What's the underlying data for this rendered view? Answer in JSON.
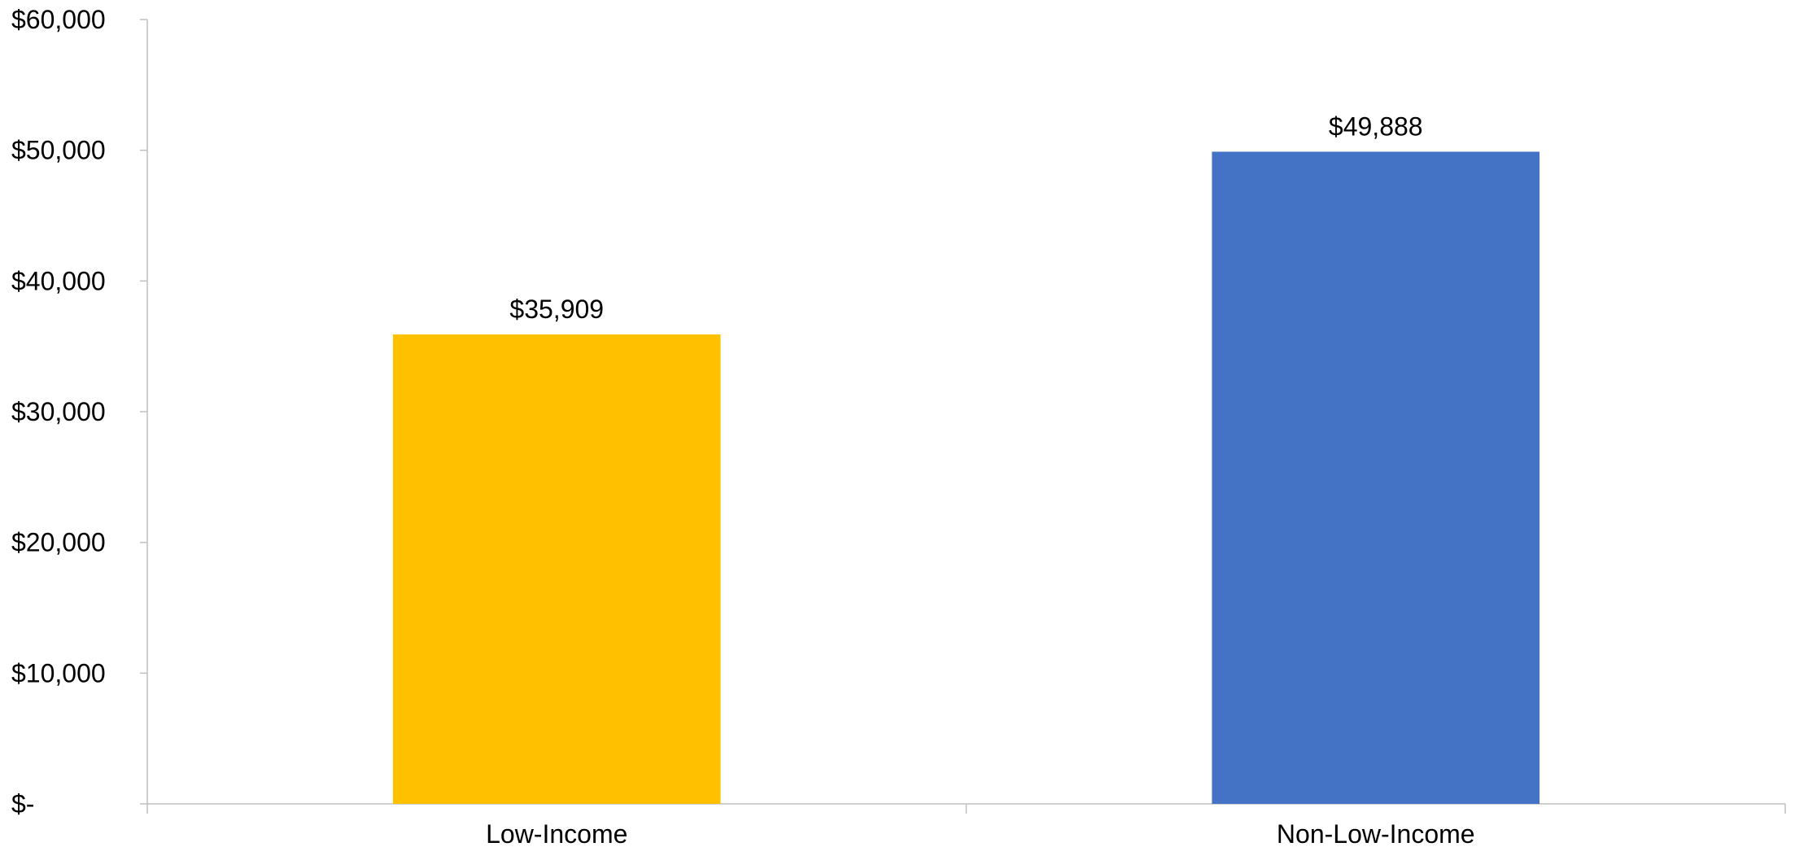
{
  "chart_data": {
    "type": "bar",
    "title": "",
    "xlabel": "",
    "ylabel": "",
    "categories": [
      "Low-Income",
      "Non-Low-Income"
    ],
    "values": [
      35909,
      49888
    ],
    "data_labels": [
      "$35,909",
      "$49,888"
    ],
    "bar_colors": [
      "#FFC000",
      "#4472C4"
    ],
    "ylim": [
      0,
      60000
    ],
    "y_ticks": [
      0,
      10000,
      20000,
      30000,
      40000,
      50000,
      60000
    ],
    "y_tick_labels": [
      "$-",
      "$10,000",
      "$20,000",
      "$30,000",
      "$40,000",
      "$50,000",
      "$60,000"
    ],
    "grid": false,
    "legend": "none"
  },
  "colors": {
    "axis": "#BFBFBF",
    "text": "#000000",
    "background": "#FFFFFF"
  }
}
